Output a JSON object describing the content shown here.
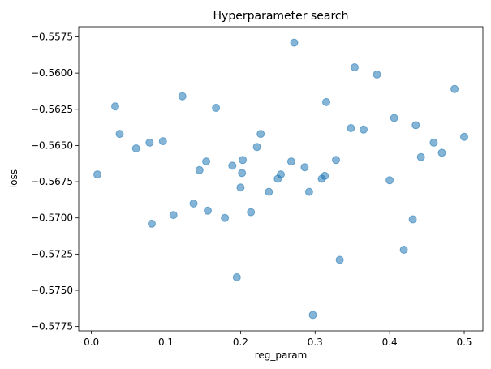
{
  "chart_data": {
    "type": "scatter",
    "title": "Hyperparameter search",
    "xlabel": "reg_param",
    "ylabel": "loss",
    "xlim": [
      -0.017,
      0.525
    ],
    "ylim": [
      -0.5778,
      -0.5568
    ],
    "x_ticks": [
      {
        "value": 0.0,
        "label": "0.0"
      },
      {
        "value": 0.1,
        "label": "0.1"
      },
      {
        "value": 0.2,
        "label": "0.2"
      },
      {
        "value": 0.3,
        "label": "0.3"
      },
      {
        "value": 0.4,
        "label": "0.4"
      },
      {
        "value": 0.5,
        "label": "0.5"
      }
    ],
    "y_ticks": [
      {
        "value": -0.5575,
        "label": "−0.5575"
      },
      {
        "value": -0.56,
        "label": "−0.5600"
      },
      {
        "value": -0.5625,
        "label": "−0.5625"
      },
      {
        "value": -0.565,
        "label": "−0.5650"
      },
      {
        "value": -0.5675,
        "label": "−0.5675"
      },
      {
        "value": -0.57,
        "label": "−0.5700"
      },
      {
        "value": -0.5725,
        "label": "−0.5725"
      },
      {
        "value": -0.575,
        "label": "−0.5750"
      },
      {
        "value": -0.5775,
        "label": "−0.5775"
      }
    ],
    "grid": false,
    "marker_color": "#1f77b4",
    "marker_alpha": 0.55,
    "points": [
      [
        0.008,
        -0.567
      ],
      [
        0.032,
        -0.5623
      ],
      [
        0.038,
        -0.5642
      ],
      [
        0.06,
        -0.5652
      ],
      [
        0.078,
        -0.5648
      ],
      [
        0.081,
        -0.5704
      ],
      [
        0.096,
        -0.5647
      ],
      [
        0.11,
        -0.5698
      ],
      [
        0.122,
        -0.5616
      ],
      [
        0.137,
        -0.569
      ],
      [
        0.145,
        -0.5667
      ],
      [
        0.154,
        -0.5661
      ],
      [
        0.156,
        -0.5695
      ],
      [
        0.167,
        -0.5624
      ],
      [
        0.179,
        -0.57
      ],
      [
        0.189,
        -0.5664
      ],
      [
        0.195,
        -0.5741
      ],
      [
        0.2,
        -0.5679
      ],
      [
        0.202,
        -0.5669
      ],
      [
        0.203,
        -0.566
      ],
      [
        0.214,
        -0.5696
      ],
      [
        0.222,
        -0.5651
      ],
      [
        0.227,
        -0.5642
      ],
      [
        0.238,
        -0.5682
      ],
      [
        0.25,
        -0.5673
      ],
      [
        0.254,
        -0.567
      ],
      [
        0.268,
        -0.5661
      ],
      [
        0.272,
        -0.5579
      ],
      [
        0.286,
        -0.5665
      ],
      [
        0.292,
        -0.5682
      ],
      [
        0.297,
        -0.5767
      ],
      [
        0.309,
        -0.5673
      ],
      [
        0.313,
        -0.5671
      ],
      [
        0.315,
        -0.562
      ],
      [
        0.328,
        -0.566
      ],
      [
        0.333,
        -0.5729
      ],
      [
        0.348,
        -0.5638
      ],
      [
        0.353,
        -0.5596
      ],
      [
        0.365,
        -0.5639
      ],
      [
        0.383,
        -0.5601
      ],
      [
        0.4,
        -0.5674
      ],
      [
        0.406,
        -0.5631
      ],
      [
        0.419,
        -0.5722
      ],
      [
        0.431,
        -0.5701
      ],
      [
        0.435,
        -0.5636
      ],
      [
        0.442,
        -0.5658
      ],
      [
        0.459,
        -0.5648
      ],
      [
        0.47,
        -0.5655
      ],
      [
        0.487,
        -0.5611
      ],
      [
        0.5,
        -0.5644
      ]
    ]
  }
}
